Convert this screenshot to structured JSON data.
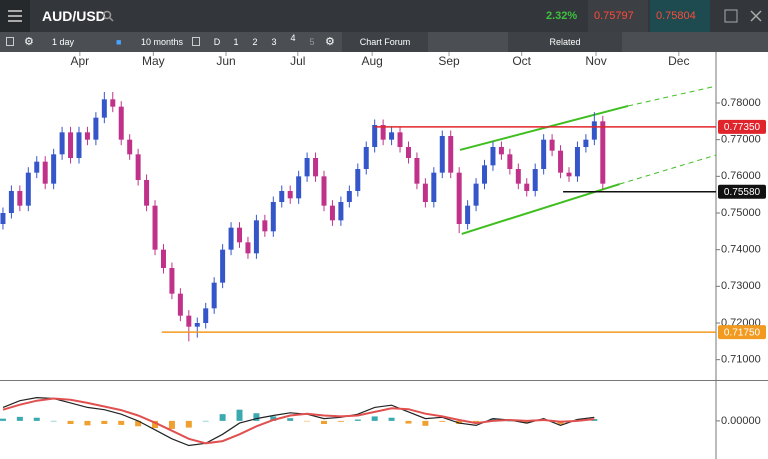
{
  "toolbar": {
    "symbol": "AUD/USD",
    "change": "2.32%",
    "sell": "0.75797",
    "buy": "0.75804",
    "interval": "1 day",
    "range": "10 months",
    "zoom_buttons": [
      "D",
      "1",
      "2",
      "3",
      "4",
      "5"
    ],
    "chart_forum": "Chart Forum",
    "related": "Related"
  },
  "chart_data": [
    {
      "type": "candlestick",
      "x": [
        0,
        1,
        2,
        3,
        4,
        5,
        6,
        7,
        8,
        9,
        10,
        11,
        12,
        13,
        14,
        15,
        16,
        17,
        18,
        19,
        20,
        21,
        22,
        23,
        24,
        25,
        26,
        27,
        28,
        29,
        30,
        31,
        32,
        33,
        34,
        35,
        36,
        37,
        38,
        39,
        40,
        41,
        42,
        43,
        44,
        45,
        46,
        47,
        48,
        49,
        50,
        51,
        52,
        53,
        54,
        55,
        56,
        57,
        58,
        59,
        60,
        61,
        62,
        63,
        64,
        65,
        66,
        67,
        68,
        69,
        70,
        71
      ],
      "open": [
        0.747,
        0.75,
        0.756,
        0.752,
        0.761,
        0.764,
        0.758,
        0.766,
        0.772,
        0.765,
        0.772,
        0.77,
        0.776,
        0.781,
        0.779,
        0.77,
        0.766,
        0.759,
        0.752,
        0.74,
        0.735,
        0.728,
        0.722,
        0.719,
        0.72,
        0.724,
        0.731,
        0.74,
        0.746,
        0.742,
        0.739,
        0.748,
        0.745,
        0.753,
        0.756,
        0.754,
        0.76,
        0.765,
        0.76,
        0.752,
        0.748,
        0.753,
        0.756,
        0.762,
        0.768,
        0.774,
        0.77,
        0.772,
        0.768,
        0.765,
        0.758,
        0.753,
        0.761,
        0.771,
        0.761,
        0.747,
        0.752,
        0.758,
        0.763,
        0.768,
        0.766,
        0.762,
        0.758,
        0.756,
        0.762,
        0.77,
        0.767,
        0.761,
        0.76,
        0.768,
        0.77,
        0.775
      ],
      "high": [
        0.7515,
        0.7575,
        0.7575,
        0.7625,
        0.7655,
        0.7655,
        0.7675,
        0.7735,
        0.7735,
        0.7735,
        0.7735,
        0.7775,
        0.783,
        0.783,
        0.7805,
        0.7715,
        0.7675,
        0.7605,
        0.7535,
        0.7415,
        0.7365,
        0.7295,
        0.7235,
        0.7215,
        0.7255,
        0.7325,
        0.7415,
        0.7475,
        0.7475,
        0.7435,
        0.7495,
        0.7495,
        0.7545,
        0.7575,
        0.7575,
        0.7615,
        0.7665,
        0.7665,
        0.7615,
        0.7535,
        0.7545,
        0.7575,
        0.7635,
        0.7695,
        0.7755,
        0.7755,
        0.7735,
        0.7735,
        0.7695,
        0.7665,
        0.7595,
        0.7625,
        0.7725,
        0.7725,
        0.7625,
        0.7535,
        0.7595,
        0.7645,
        0.7695,
        0.7695,
        0.7675,
        0.7635,
        0.7595,
        0.7635,
        0.7715,
        0.7715,
        0.7685,
        0.7625,
        0.7695,
        0.7715,
        0.7775,
        0.7765
      ],
      "low": [
        0.7455,
        0.7485,
        0.7505,
        0.7505,
        0.7595,
        0.7565,
        0.7565,
        0.7645,
        0.7635,
        0.7635,
        0.7685,
        0.7685,
        0.7745,
        0.7775,
        0.7685,
        0.7645,
        0.7575,
        0.7505,
        0.7385,
        0.7335,
        0.7265,
        0.7205,
        0.715,
        0.716,
        0.7185,
        0.7225,
        0.7295,
        0.7385,
        0.7405,
        0.7375,
        0.7375,
        0.7435,
        0.7435,
        0.7515,
        0.7525,
        0.7525,
        0.7585,
        0.7585,
        0.7505,
        0.7465,
        0.7465,
        0.7515,
        0.7545,
        0.7605,
        0.7665,
        0.7685,
        0.7685,
        0.7665,
        0.7635,
        0.7565,
        0.7515,
        0.7515,
        0.7595,
        0.7595,
        0.7445,
        0.7455,
        0.7505,
        0.7565,
        0.7615,
        0.7645,
        0.7605,
        0.7565,
        0.7545,
        0.7545,
        0.7605,
        0.7655,
        0.7595,
        0.7585,
        0.7585,
        0.7665,
        0.7685,
        0.7565
      ],
      "close": [
        0.75,
        0.756,
        0.752,
        0.761,
        0.764,
        0.758,
        0.766,
        0.772,
        0.765,
        0.772,
        0.77,
        0.776,
        0.781,
        0.779,
        0.77,
        0.766,
        0.759,
        0.752,
        0.74,
        0.735,
        0.728,
        0.722,
        0.719,
        0.72,
        0.724,
        0.731,
        0.74,
        0.746,
        0.742,
        0.739,
        0.748,
        0.745,
        0.753,
        0.756,
        0.754,
        0.76,
        0.765,
        0.76,
        0.752,
        0.748,
        0.753,
        0.756,
        0.762,
        0.768,
        0.774,
        0.77,
        0.772,
        0.768,
        0.765,
        0.758,
        0.753,
        0.761,
        0.771,
        0.761,
        0.747,
        0.752,
        0.758,
        0.763,
        0.768,
        0.766,
        0.762,
        0.758,
        0.756,
        0.762,
        0.77,
        0.767,
        0.761,
        0.76,
        0.768,
        0.77,
        0.775,
        0.758
      ],
      "up_color": "#3556c9",
      "down_color": "#c0328a",
      "xlim": [
        -0.35,
        84.4
      ],
      "xticks": [
        {
          "value": 9.1,
          "label": "Apr"
        },
        {
          "value": 17.8,
          "label": "May"
        },
        {
          "value": 26.4,
          "label": "Jun"
        },
        {
          "value": 34.9,
          "label": "Jul"
        },
        {
          "value": 43.7,
          "label": "Aug"
        },
        {
          "value": 52.8,
          "label": "Sep"
        },
        {
          "value": 61.4,
          "label": "Oct"
        },
        {
          "value": 70.2,
          "label": "Nov"
        },
        {
          "value": 80.0,
          "label": "Dec"
        }
      ],
      "ylim": [
        0.705,
        0.789
      ],
      "yticks": [
        {
          "value": 0.78,
          "label": "0.78000"
        },
        {
          "value": 0.77,
          "label": "0.77000"
        },
        {
          "value": 0.76,
          "label": "0.76000"
        },
        {
          "value": 0.75,
          "label": "0.75000"
        },
        {
          "value": 0.74,
          "label": "0.74000"
        },
        {
          "value": 0.73,
          "label": "0.73000"
        },
        {
          "value": 0.72,
          "label": "0.72000"
        },
        {
          "value": 0.71,
          "label": "0.71000"
        }
      ],
      "levels": [
        {
          "value": 0.7735,
          "label": "0.77350",
          "color": "#e0242c",
          "x": 44.0
        },
        {
          "value": 0.7558,
          "label": "0.75580",
          "color": "#111111",
          "x": 66.3
        },
        {
          "value": 0.7175,
          "label": "0.71750",
          "color": "#f29a1f",
          "x": 18.8
        }
      ],
      "trendlines": [
        {
          "color": "#3fbf1f",
          "x": [
            54.1,
            74.0,
            84.4
          ],
          "y": [
            0.7672,
            0.7792,
            0.7846
          ]
        },
        {
          "color": "#3fbf1f",
          "x": [
            54.3,
            73.0,
            84.4
          ],
          "y": [
            0.7443,
            0.7579,
            0.7658
          ]
        }
      ]
    },
    {
      "type": "macd",
      "x": [
        0,
        2,
        4,
        6,
        8,
        10,
        12,
        14,
        16,
        18,
        20,
        22,
        24,
        26,
        28,
        30,
        32,
        34,
        36,
        38,
        40,
        42,
        44,
        46,
        48,
        50,
        52,
        54,
        56,
        58,
        60,
        62,
        64,
        66,
        68,
        70
      ],
      "xlim": [
        -0.35,
        84.4
      ],
      "ylim": [
        -0.0085,
        0.008
      ],
      "yticks": [
        {
          "value": 0,
          "label": "0.00000"
        }
      ],
      "series": [
        {
          "color": "#222222",
          "values": [
            0.003,
            0.0045,
            0.0052,
            0.005,
            0.004,
            0.003,
            0.0025,
            0.0015,
            0.0,
            -0.002,
            -0.004,
            -0.0055,
            -0.005,
            -0.003,
            -0.0005,
            0.0005,
            0.0012,
            0.0018,
            0.0015,
            0.0005,
            0.0008,
            0.0015,
            0.003,
            0.0035,
            0.002,
            0.0005,
            0.0008,
            -0.0005,
            -0.001,
            0.0005,
            0.0002,
            -0.0005,
            0.0005,
            -0.001,
            0.0003,
            0.0008
          ]
        },
        {
          "color": "#e0504f",
          "values": [
            0.0025,
            0.0036,
            0.0045,
            0.005,
            0.0047,
            0.004,
            0.0032,
            0.0024,
            0.0012,
            -0.0004,
            -0.0022,
            -0.004,
            -0.005,
            -0.0045,
            -0.003,
            -0.0012,
            0.0002,
            0.0012,
            0.0016,
            0.0012,
            0.001,
            0.0012,
            0.002,
            0.0028,
            0.0026,
            0.0016,
            0.001,
            0.0002,
            -0.0005,
            0.0,
            0.0002,
            0.0,
            0.0002,
            -0.0002,
            0.0,
            0.0004
          ]
        }
      ],
      "histogram": {
        "up_color": "#3aaab0",
        "down_color": "#f0a030",
        "values": [
          0.0005,
          0.0009,
          0.0007,
          0.0,
          -0.0007,
          -0.001,
          -0.0007,
          -0.0009,
          -0.0012,
          -0.0016,
          -0.0018,
          -0.0015,
          0.0,
          0.0015,
          0.0025,
          0.0017,
          0.001,
          0.0006,
          -0.0001,
          -0.0007,
          -0.0002,
          0.0003,
          0.001,
          0.0007,
          -0.0006,
          -0.0011,
          -0.0002,
          -0.0007,
          -0.0005,
          0.0005,
          0.0,
          -0.0005,
          0.0003,
          -0.0008,
          0.0003,
          0.0004
        ]
      }
    }
  ]
}
